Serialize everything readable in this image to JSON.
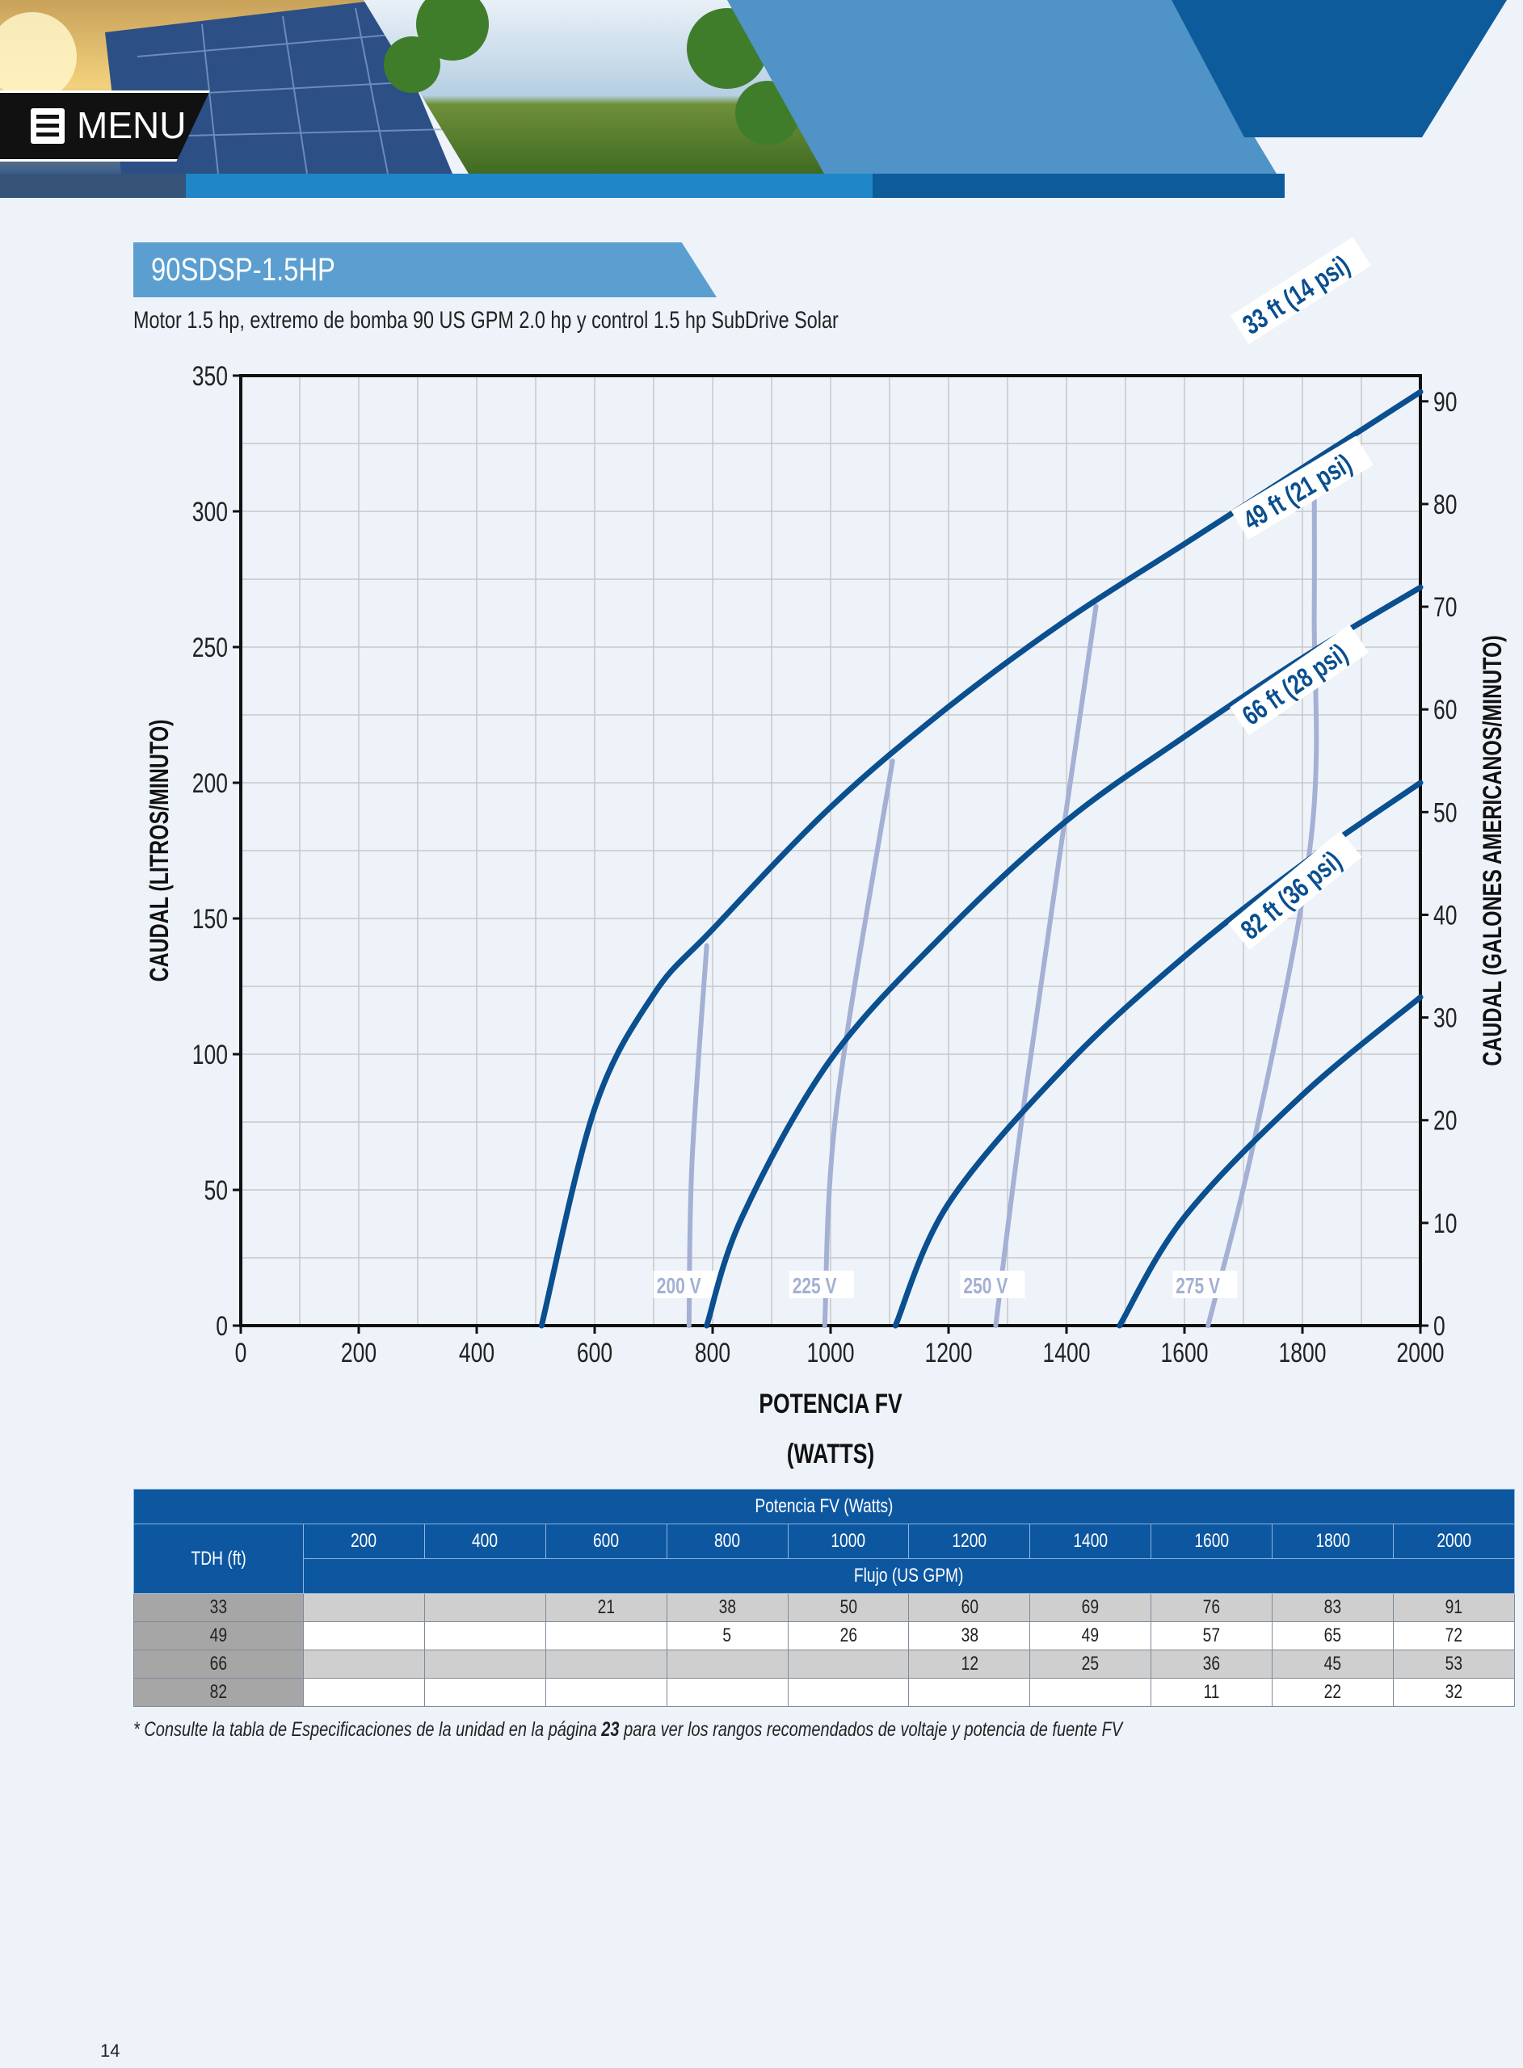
{
  "header": {
    "menu_label": "MENU"
  },
  "section": {
    "title": "90SDSP-1.5HP",
    "subtitle": "Motor 1.5 hp, extremo de bomba 90 US GPM 2.0 hp y control 1.5 hp SubDrive Solar"
  },
  "chart_data": {
    "type": "line",
    "xlabel_line1": "POTENCIA FV",
    "xlabel_line2": "(WATTS)",
    "ylabel_left": "CAUDAL (LITROS/MINUTO)",
    "ylabel_right": "CAUDAL (GALONES AMERICANOS/MINUTO)",
    "xlim": [
      0,
      2000
    ],
    "ylim_left": [
      0,
      350
    ],
    "ylim_right": [
      0,
      92.5
    ],
    "x_ticks": [
      "0",
      "200",
      "400",
      "600",
      "800",
      "1000",
      "1200",
      "1400",
      "1600",
      "1800",
      "2000"
    ],
    "y_ticks_left": [
      "0",
      "50",
      "100",
      "150",
      "200",
      "250",
      "300",
      "350"
    ],
    "y_ticks_right": [
      "0",
      "10",
      "20",
      "30",
      "40",
      "50",
      "60",
      "70",
      "80",
      "90"
    ],
    "grid": true,
    "series": [
      {
        "name": "33 ft (14 psi)",
        "color": "#0a4f8f",
        "points": [
          [
            510,
            0
          ],
          [
            600,
            80
          ],
          [
            700,
            122
          ],
          [
            800,
            146
          ],
          [
            1000,
            191
          ],
          [
            1200,
            228
          ],
          [
            1400,
            260
          ],
          [
            1600,
            288
          ],
          [
            1800,
            316
          ],
          [
            2000,
            344
          ]
        ]
      },
      {
        "name": "49 ft (21 psi)",
        "color": "#0a4f8f",
        "points": [
          [
            790,
            0
          ],
          [
            850,
            40
          ],
          [
            1000,
            98
          ],
          [
            1200,
            146
          ],
          [
            1400,
            186
          ],
          [
            1600,
            217
          ],
          [
            1800,
            246
          ],
          [
            2000,
            272
          ]
        ]
      },
      {
        "name": "66 ft (28 psi)",
        "color": "#0a4f8f",
        "points": [
          [
            1110,
            0
          ],
          [
            1200,
            45
          ],
          [
            1400,
            96
          ],
          [
            1600,
            136
          ],
          [
            1800,
            170
          ],
          [
            2000,
            200
          ]
        ]
      },
      {
        "name": "82 ft (36 psi)",
        "color": "#0a4f8f",
        "points": [
          [
            1490,
            0
          ],
          [
            1600,
            40
          ],
          [
            1800,
            85
          ],
          [
            2000,
            121
          ]
        ]
      }
    ],
    "voltage_lines": [
      {
        "name": "200 V",
        "color": "#a4b0d4",
        "points": [
          [
            760,
            0
          ],
          [
            765,
            60
          ],
          [
            790,
            140
          ]
        ]
      },
      {
        "name": "225 V",
        "color": "#a4b0d4",
        "points": [
          [
            990,
            0
          ],
          [
            1010,
            80
          ],
          [
            1105,
            208
          ]
        ]
      },
      {
        "name": "250 V",
        "color": "#a4b0d4",
        "points": [
          [
            1280,
            0
          ],
          [
            1330,
            85
          ],
          [
            1450,
            265
          ]
        ]
      },
      {
        "name": "275 V",
        "color": "#a4b0d4",
        "points": [
          [
            1640,
            0
          ],
          [
            1720,
            70
          ],
          [
            1815,
            180
          ],
          [
            1820,
            262
          ],
          [
            1820,
            316
          ]
        ]
      }
    ]
  },
  "table": {
    "title": "Potencia FV (Watts)",
    "row_header": "TDH (ft)",
    "flow_header": "Flujo (US GPM)",
    "columns": [
      "200",
      "400",
      "600",
      "800",
      "1000",
      "1200",
      "1400",
      "1600",
      "1800",
      "2000"
    ],
    "rows": [
      {
        "tdh": "33",
        "values": [
          "",
          "",
          "21",
          "38",
          "50",
          "60",
          "69",
          "76",
          "83",
          "91"
        ]
      },
      {
        "tdh": "49",
        "values": [
          "",
          "",
          "",
          "5",
          "26",
          "38",
          "49",
          "57",
          "65",
          "72"
        ]
      },
      {
        "tdh": "66",
        "values": [
          "",
          "",
          "",
          "",
          "",
          "12",
          "25",
          "36",
          "45",
          "53"
        ]
      },
      {
        "tdh": "82",
        "values": [
          "",
          "",
          "",
          "",
          "",
          "",
          "",
          "11",
          "22",
          "32"
        ]
      }
    ]
  },
  "footnote": {
    "before": "* Consulte la tabla de Especificaciones de la unidad en la página ",
    "page": "23",
    "after": " para ver los rangos recomendados de voltaje y potencia de fuente FV"
  },
  "page_number": "14"
}
